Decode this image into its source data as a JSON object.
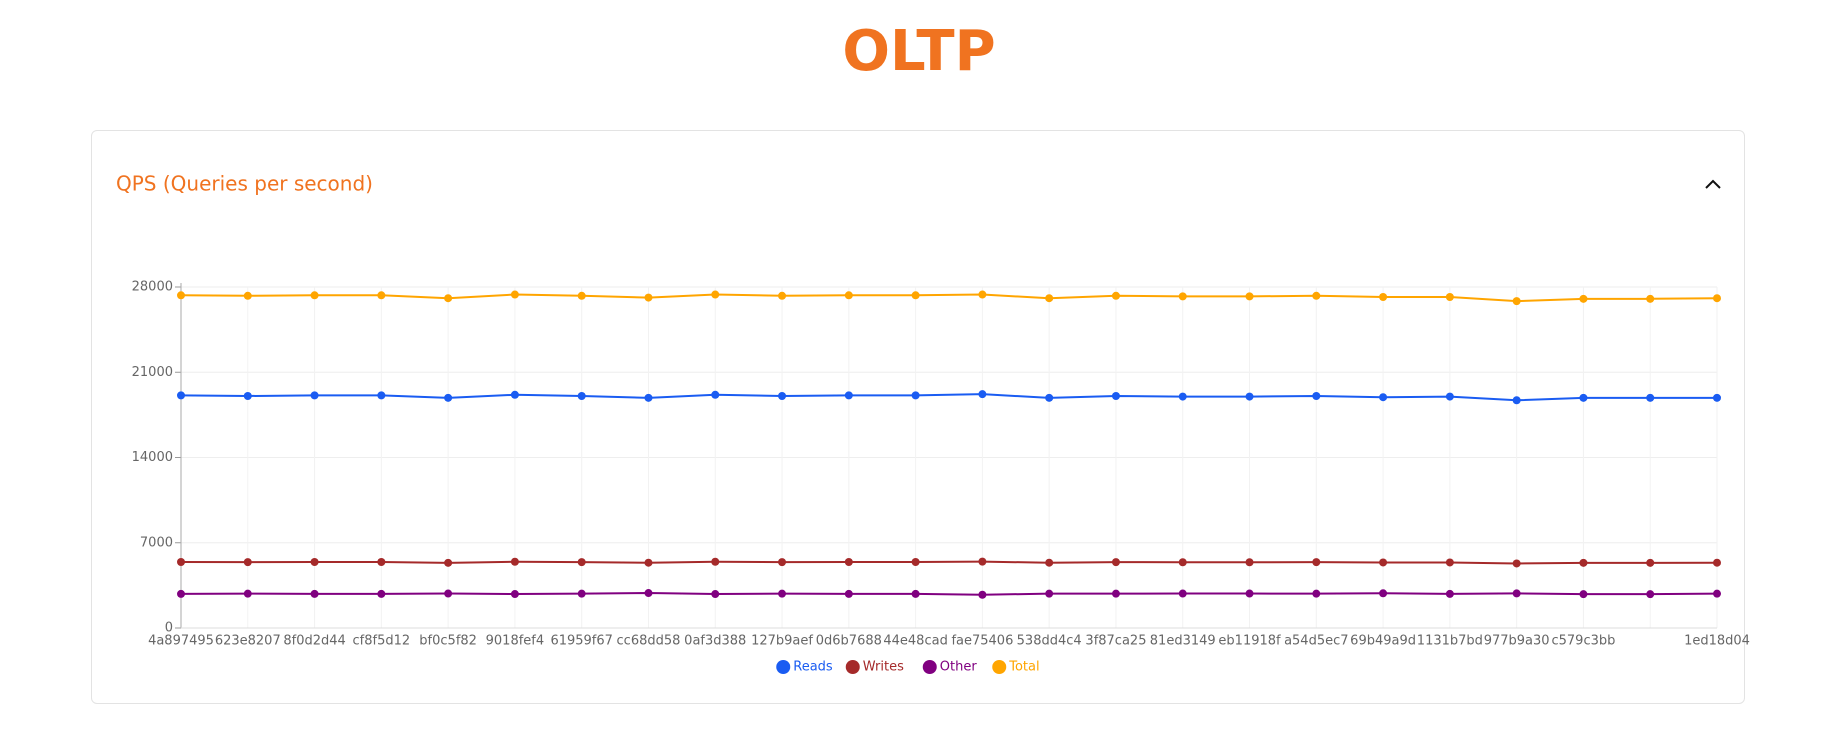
{
  "title": "OLTP",
  "chart_data": {
    "type": "line",
    "title": "QPS (Queries per second)",
    "categories": [
      "4a897495",
      "623e8207",
      "8f0d2d44",
      "cf8f5d12",
      "bf0c5f82",
      "9018fef4",
      "61959f67",
      "cc68dd58",
      "0af3d388",
      "127b9aef",
      "0d6b7688",
      "44e48cad",
      "fae75406",
      "538dd4c4",
      "3f87ca25",
      "81ed3149",
      "eb11918f",
      "a54d5ec7",
      "69b49a9d",
      "1131b7bd",
      "977b9a30",
      "c579c3bb",
      null,
      "1ed18d04"
    ],
    "series": [
      {
        "name": "Reads",
        "color": "#1a5cf2",
        "values": [
          19100,
          19050,
          19100,
          19100,
          18900,
          19150,
          19050,
          18900,
          19150,
          19050,
          19100,
          19100,
          19200,
          18900,
          19050,
          19000,
          19000,
          19050,
          18950,
          19000,
          18700,
          18900,
          18900,
          18900
        ]
      },
      {
        "name": "Writes",
        "color": "#a52a2a",
        "values": [
          5420,
          5410,
          5420,
          5420,
          5350,
          5440,
          5410,
          5360,
          5440,
          5410,
          5420,
          5420,
          5450,
          5360,
          5410,
          5400,
          5400,
          5410,
          5380,
          5380,
          5300,
          5350,
          5350,
          5360
        ]
      },
      {
        "name": "Other",
        "color": "#800080",
        "values": [
          2800,
          2820,
          2800,
          2800,
          2830,
          2790,
          2820,
          2870,
          2790,
          2820,
          2800,
          2800,
          2730,
          2820,
          2820,
          2830,
          2830,
          2820,
          2850,
          2800,
          2840,
          2780,
          2780,
          2820
        ]
      },
      {
        "name": "Total",
        "color": "#ffa500",
        "values": [
          27320,
          27280,
          27320,
          27320,
          27080,
          27380,
          27280,
          27130,
          27380,
          27280,
          27320,
          27320,
          27380,
          27080,
          27280,
          27230,
          27230,
          27280,
          27180,
          27180,
          26840,
          27030,
          27030,
          27080
        ]
      }
    ],
    "ylim": [
      0,
      28000
    ],
    "yticks": [
      0,
      7000,
      14000,
      21000,
      28000
    ],
    "grid": true
  }
}
